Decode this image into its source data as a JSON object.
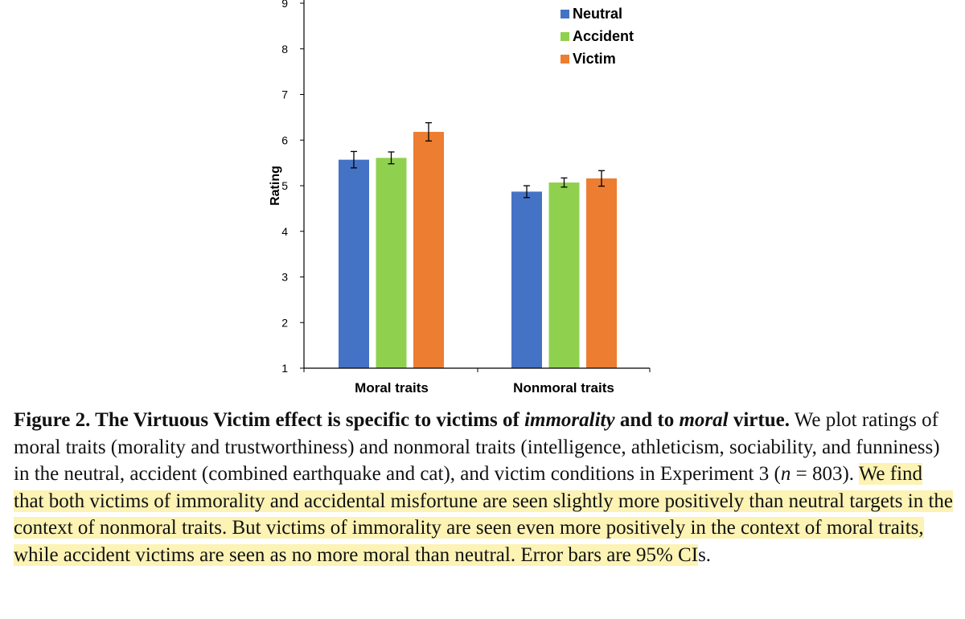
{
  "chart_data": {
    "type": "bar",
    "categories": [
      "Moral traits",
      "Nonmoral traits"
    ],
    "series": [
      {
        "name": "Neutral",
        "color": "#4472c4",
        "values": [
          5.57,
          4.87
        ],
        "ci": [
          0.18,
          0.13
        ]
      },
      {
        "name": "Accident",
        "color": "#8fd14f",
        "values": [
          5.61,
          5.07
        ],
        "ci": [
          0.13,
          0.1
        ]
      },
      {
        "name": "Victim",
        "color": "#ed7d31",
        "values": [
          6.18,
          5.16
        ],
        "ci": [
          0.2,
          0.17
        ]
      }
    ],
    "ylabel": "Rating",
    "xlabel": "",
    "ylim": [
      1,
      9
    ],
    "yticks": [
      "1",
      "2",
      "3",
      "4",
      "5",
      "6",
      "7",
      "8",
      "9"
    ],
    "grid": false,
    "legend_position": "top-right"
  },
  "caption": {
    "title_a": "Figure 2. The Virtuous Victim effect is specific to victims of ",
    "title_em1": "immorality",
    "title_b": " and to ",
    "title_em2": "moral",
    "title_c": " virtue.",
    "body_a": " We plot ratings of moral traits (morality and trustworthiness) and nonmoral traits (intelligence, athleticism, sociability, and funniness) in the neutral, accident (combined earthquake and cat), and victim conditions in Experiment 3 (",
    "body_n": "n",
    "body_b": " = 803). ",
    "highlight": "We find that both victims of immorality and accidental misfortune are seen slightly more positively than neutral targets in the context of nonmoral traits. But victims of immorality are seen even more positively in the context of moral traits, while accident victims are seen as no more moral than neutral. Error bars are 95% CI",
    "tail": "s."
  }
}
